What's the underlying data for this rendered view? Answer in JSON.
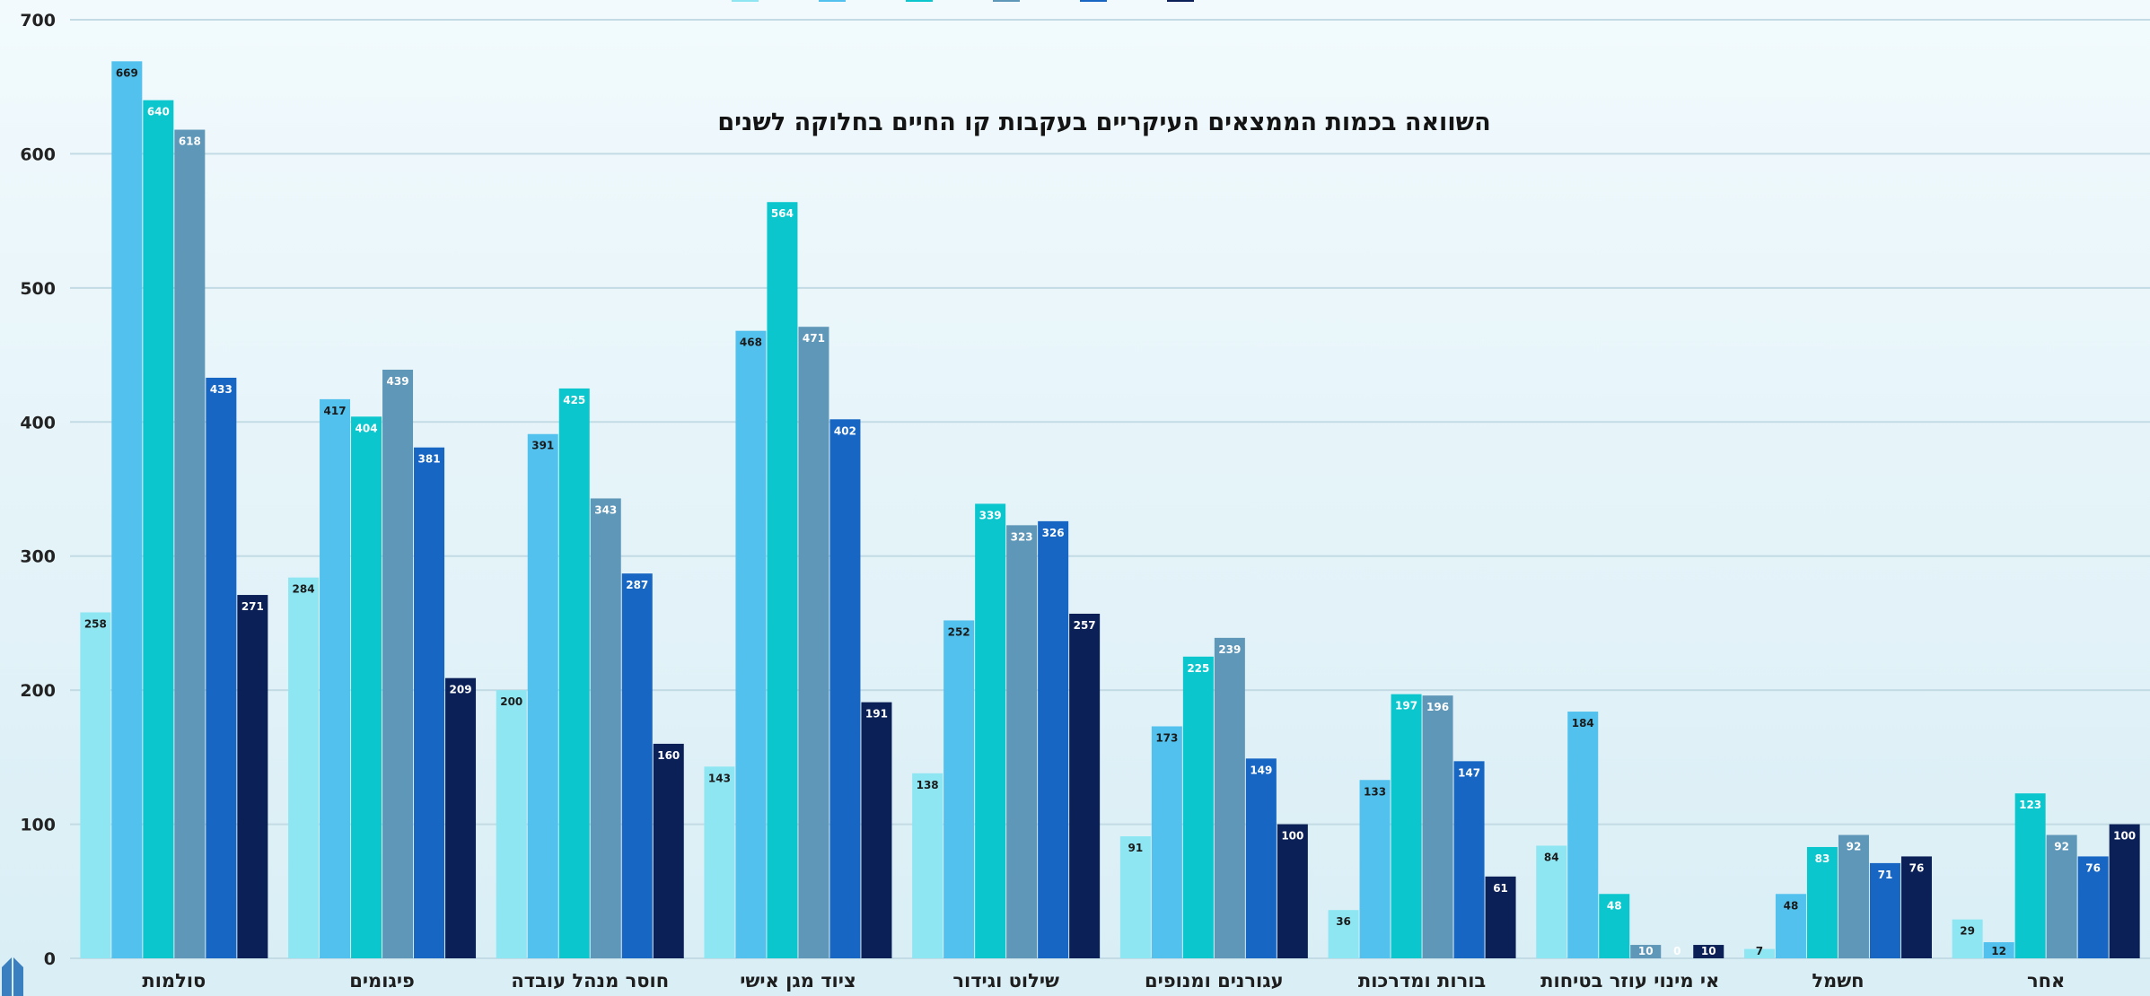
{
  "chart_data": {
    "type": "bar",
    "title": "השוואה בכמות הממצאים העיקריים בעקבות קו החיים בחלוקה לשנים",
    "categories": [
      "סולמות",
      "פיגומים",
      "חוסר מנהל עובדה",
      "ציוד מגן אישי",
      "שילוט וגידור",
      "עגורנים ומנופים",
      "בורות ומדרכות",
      "אי מינוי עוזר בטיחות",
      "חשמל",
      "אחר"
    ],
    "ylim": [
      0,
      700
    ],
    "yticks": [
      0,
      100,
      200,
      300,
      400,
      500,
      600,
      700
    ],
    "grid": true,
    "legend": "top",
    "series": [
      {
        "color": "#8fe6f3",
        "values": [
          258,
          284,
          200,
          143,
          138,
          91,
          36,
          84,
          7,
          29
        ]
      },
      {
        "color": "#52c1ee",
        "values": [
          669,
          417,
          391,
          468,
          252,
          173,
          133,
          184,
          48,
          12
        ]
      },
      {
        "color": "#0bc7cd",
        "values": [
          640,
          404,
          425,
          564,
          339,
          225,
          197,
          48,
          83,
          123
        ]
      },
      {
        "color": "#5f97b8",
        "values": [
          618,
          439,
          343,
          471,
          323,
          239,
          196,
          10,
          92,
          92
        ]
      },
      {
        "color": "#1766c4",
        "values": [
          433,
          381,
          287,
          402,
          326,
          149,
          147,
          0,
          71,
          76
        ]
      },
      {
        "color": "#0b2057",
        "values": [
          271,
          209,
          160,
          191,
          257,
          100,
          61,
          10,
          76,
          100
        ]
      }
    ]
  }
}
